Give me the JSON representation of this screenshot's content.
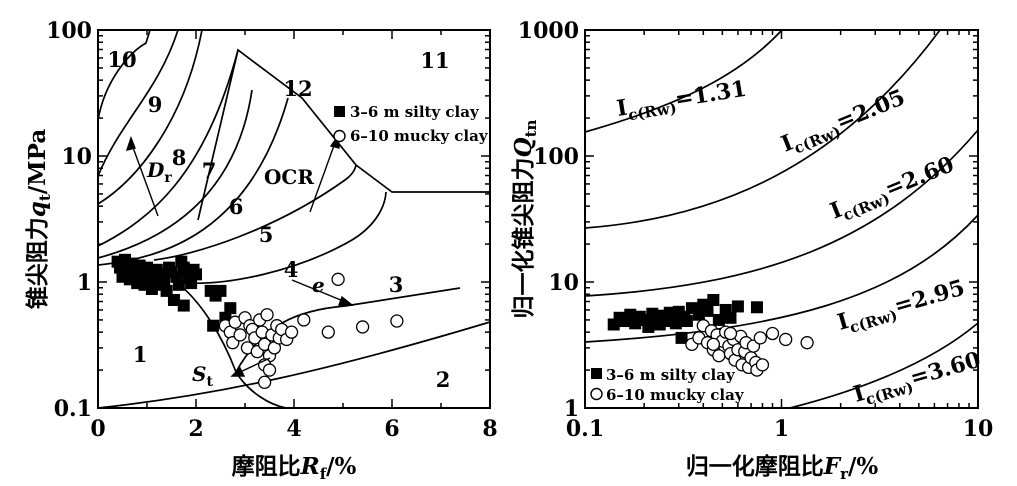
{
  "chart_data": [
    {
      "type": "scatter",
      "xlabel_prefix": "摩阻比",
      "xlabel_var": "R",
      "xlabel_sub": "f",
      "xlabel_unit": "/%",
      "ylabel_prefix": "锥尖阻力",
      "ylabel_var": "q",
      "ylabel_sub": "t",
      "ylabel_unit": "/MPa",
      "xlim": [
        0,
        8
      ],
      "ylim": [
        0.1,
        100
      ],
      "yscale": "log",
      "x_ticks": [
        "0",
        "2",
        "4",
        "6",
        "8"
      ],
      "y_ticks": [
        "0.1",
        "1",
        "10",
        "100"
      ],
      "zone_labels": [
        "1",
        "2",
        "3",
        "4",
        "5",
        "6",
        "7",
        "8",
        "9",
        "10",
        "11",
        "12"
      ],
      "annotations": {
        "ocr": "OCR",
        "dr_var": "D",
        "dr_sub": "r",
        "e": "e",
        "st_var": "S",
        "st_sub": "t"
      },
      "legend_position": "top-right",
      "series": [
        {
          "name": "3–6 m silty clay",
          "marker": "filled-square",
          "points": [
            [
              0.4,
              1.45
            ],
            [
              0.45,
              1.3
            ],
            [
              0.5,
              1.1
            ],
            [
              0.55,
              1.5
            ],
            [
              0.6,
              1.25
            ],
            [
              0.65,
              1.05
            ],
            [
              0.7,
              1.4
            ],
            [
              0.75,
              1.2
            ],
            [
              0.8,
              0.98
            ],
            [
              0.85,
              1.35
            ],
            [
              0.9,
              1.1
            ],
            [
              0.95,
              0.95
            ],
            [
              1.0,
              1.3
            ],
            [
              1.05,
              1.15
            ],
            [
              1.1,
              0.88
            ],
            [
              1.15,
              1.05
            ],
            [
              1.2,
              1.25
            ],
            [
              1.25,
              0.95
            ],
            [
              1.3,
              1.15
            ],
            [
              1.35,
              1.05
            ],
            [
              1.4,
              0.85
            ],
            [
              1.45,
              1.3
            ],
            [
              1.5,
              1.2
            ],
            [
              1.55,
              0.72
            ],
            [
              1.6,
              1.1
            ],
            [
              1.65,
              0.95
            ],
            [
              1.7,
              1.45
            ],
            [
              1.75,
              1.3
            ],
            [
              1.8,
              1.2
            ],
            [
              1.85,
              1.1
            ],
            [
              1.9,
              0.98
            ],
            [
              1.95,
              1.25
            ],
            [
              2.0,
              1.15
            ],
            [
              1.75,
              0.65
            ],
            [
              2.3,
              0.85
            ],
            [
              2.4,
              0.78
            ],
            [
              2.5,
              0.85
            ],
            [
              2.35,
              0.45
            ],
            [
              2.6,
              0.52
            ],
            [
              2.7,
              0.62
            ]
          ]
        },
        {
          "name": "6–10 mucky clay",
          "marker": "open-circle",
          "points": [
            [
              2.6,
              0.45
            ],
            [
              2.7,
              0.4
            ],
            [
              2.75,
              0.33
            ],
            [
              2.8,
              0.48
            ],
            [
              2.9,
              0.38
            ],
            [
              3.0,
              0.52
            ],
            [
              3.05,
              0.3
            ],
            [
              3.1,
              0.45
            ],
            [
              3.15,
              0.42
            ],
            [
              3.2,
              0.36
            ],
            [
              3.25,
              0.28
            ],
            [
              3.3,
              0.5
            ],
            [
              3.35,
              0.4
            ],
            [
              3.4,
              0.32
            ],
            [
              3.45,
              0.55
            ],
            [
              3.5,
              0.26
            ],
            [
              3.55,
              0.38
            ],
            [
              3.6,
              0.3
            ],
            [
              3.65,
              0.45
            ],
            [
              3.7,
              0.36
            ],
            [
              3.75,
              0.42
            ],
            [
              3.85,
              0.35
            ],
            [
              3.95,
              0.4
            ],
            [
              3.4,
              0.22
            ],
            [
              3.5,
              0.2
            ],
            [
              3.4,
              0.16
            ],
            [
              4.2,
              0.5
            ],
            [
              4.7,
              0.4
            ],
            [
              4.9,
              1.05
            ],
            [
              5.4,
              0.44
            ],
            [
              6.1,
              0.49
            ]
          ]
        }
      ]
    },
    {
      "type": "scatter",
      "xlabel_prefix": "归一化摩阻比",
      "xlabel_var": "F",
      "xlabel_sub": "r",
      "xlabel_unit": "/%",
      "ylabel_prefix": "归一化锥尖阻力",
      "ylabel_var": "Q",
      "ylabel_sub": "tn",
      "xlim": [
        0.1,
        10
      ],
      "ylim": [
        1,
        1000
      ],
      "xscale": "log",
      "yscale": "log",
      "x_ticks": [
        "0.1",
        "1",
        "10"
      ],
      "y_ticks": [
        "1",
        "10",
        "100",
        "1000"
      ],
      "ic_curves": [
        {
          "label_pre": "I",
          "label_sub": "c(Rw)",
          "value": "=1.31"
        },
        {
          "label_pre": "I",
          "label_sub": "c(Rw)",
          "value": "=2.05"
        },
        {
          "label_pre": "I",
          "label_sub": "c(Rw)",
          "value": "=2.60"
        },
        {
          "label_pre": "I",
          "label_sub": "c(Rw)",
          "value": "=2.95"
        },
        {
          "label_pre": "I",
          "label_sub": "c(Rw)",
          "value": "=3.60"
        }
      ],
      "legend_position": "bottom-left",
      "series": [
        {
          "name": "3–6 m silty clay",
          "marker": "filled-square",
          "points": [
            [
              0.14,
              4.6
            ],
            [
              0.15,
              5.2
            ],
            [
              0.16,
              4.9
            ],
            [
              0.17,
              5.5
            ],
            [
              0.18,
              4.7
            ],
            [
              0.19,
              5.3
            ],
            [
              0.2,
              5.0
            ],
            [
              0.21,
              4.4
            ],
            [
              0.22,
              5.6
            ],
            [
              0.23,
              5.1
            ],
            [
              0.24,
              4.6
            ],
            [
              0.25,
              5.4
            ],
            [
              0.26,
              4.9
            ],
            [
              0.27,
              5.7
            ],
            [
              0.28,
              5.2
            ],
            [
              0.29,
              4.7
            ],
            [
              0.3,
              5.8
            ],
            [
              0.31,
              3.6
            ],
            [
              0.32,
              5.3
            ],
            [
              0.33,
              4.9
            ],
            [
              0.35,
              6.2
            ],
            [
              0.38,
              5.5
            ],
            [
              0.4,
              6.6
            ],
            [
              0.42,
              5.9
            ],
            [
              0.45,
              7.2
            ],
            [
              0.48,
              5.0
            ],
            [
              0.52,
              6.0
            ],
            [
              0.55,
              5.2
            ],
            [
              0.6,
              6.4
            ],
            [
              0.75,
              6.3
            ]
          ]
        },
        {
          "name": "6–10 mucky clay",
          "marker": "open-circle",
          "points": [
            [
              0.35,
              3.2
            ],
            [
              0.38,
              3.6
            ],
            [
              0.4,
              4.5
            ],
            [
              0.42,
              3.3
            ],
            [
              0.44,
              4.1
            ],
            [
              0.45,
              2.9
            ],
            [
              0.47,
              3.8
            ],
            [
              0.48,
              2.6
            ],
            [
              0.5,
              3.4
            ],
            [
              0.52,
              4.0
            ],
            [
              0.54,
              3.1
            ],
            [
              0.55,
              2.7
            ],
            [
              0.57,
              3.5
            ],
            [
              0.58,
              2.4
            ],
            [
              0.6,
              2.9
            ],
            [
              0.62,
              3.7
            ],
            [
              0.63,
              2.2
            ],
            [
              0.65,
              2.8
            ],
            [
              0.66,
              3.3
            ],
            [
              0.68,
              2.1
            ],
            [
              0.7,
              2.5
            ],
            [
              0.72,
              3.1
            ],
            [
              0.74,
              2.3
            ],
            [
              0.75,
              2.0
            ],
            [
              0.78,
              3.6
            ],
            [
              0.8,
              2.2
            ],
            [
              0.9,
              3.9
            ],
            [
              1.05,
              3.5
            ],
            [
              1.35,
              3.3
            ],
            [
              0.45,
              3.2
            ],
            [
              0.55,
              3.9
            ]
          ]
        }
      ]
    }
  ]
}
